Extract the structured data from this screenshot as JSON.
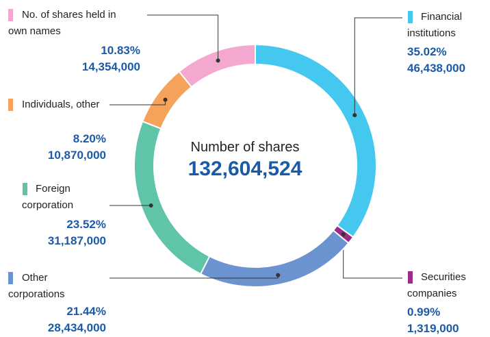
{
  "chart_data": {
    "type": "pie",
    "donut": true,
    "center_title": "Number of shares",
    "total": "132,604,524",
    "categories": [
      "Financial institutions",
      "Securities companies",
      "Other corporations",
      "Foreign corporation",
      "Individuals, other",
      "No. of shares held in own names"
    ],
    "values": [
      35.02,
      0.99,
      21.44,
      23.52,
      8.2,
      10.83
    ],
    "value_labels": [
      "35.02%",
      "0.99%",
      "21.44%",
      "23.52%",
      "8.20%",
      "10.83%"
    ],
    "shares": [
      {
        "value": 46438000,
        "label": "46,438,000"
      },
      {
        "value": 1319000,
        "label": "1,319,000"
      },
      {
        "value": 28434000,
        "label": "28,434,000"
      },
      {
        "value": 31187000,
        "label": "31,187,000"
      },
      {
        "value": 10870000,
        "label": "10,870,000"
      },
      {
        "value": 14354000,
        "label": "14,354,000"
      }
    ],
    "colors": [
      "#45c8f0",
      "#9b2a8a",
      "#6a93d0",
      "#5fc4a8",
      "#f5a35a",
      "#f4a8cf"
    ]
  }
}
